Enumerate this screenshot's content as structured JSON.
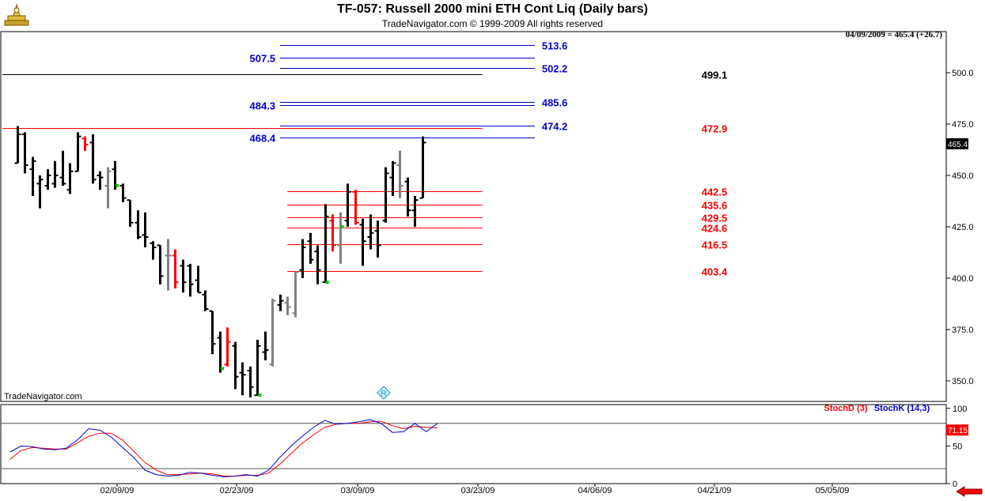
{
  "header": {
    "title": "TF-057:  Russell 2000 mini ETH Cont Liq  (Daily bars)",
    "subtitle": "TradeNavigator.com © 1999-2009 All rights reserved",
    "info": "04/09/2009 = 465.4 (+26.7)",
    "watermark": "TradeNavigator.com"
  },
  "indicator": {
    "stochd_label": "StochD (3)",
    "stochk_label": "StochK (14,3)",
    "last_value": "71.15"
  },
  "price_tag": "465.4",
  "colors": {
    "up": "#000000",
    "down": "#ff0000",
    "neutral": "#808080",
    "blue": "#0000cc",
    "red": "#ff0000",
    "green": "#00cc00"
  },
  "chart_data": {
    "type": "ohlc",
    "ylim": [
      340,
      520
    ],
    "y_ticks": [
      "350.0",
      "375.0",
      "400.0",
      "425.0",
      "450.0",
      "475.0",
      "500.0"
    ],
    "x_tick_labels": [
      "02/09/09",
      "02/23/09",
      "03/09/09",
      "03/23/09",
      "04/06/09",
      "04/21/09",
      "05/05/09"
    ],
    "bars": [
      {
        "o": 456,
        "h": 474,
        "l": 456,
        "c": 470,
        "t": "up"
      },
      {
        "o": 470,
        "h": 471,
        "l": 451,
        "c": 455,
        "t": "up"
      },
      {
        "o": 453,
        "h": 459,
        "l": 440,
        "c": 457,
        "t": "up"
      },
      {
        "o": 446,
        "h": 450,
        "l": 434,
        "c": 448,
        "t": "up"
      },
      {
        "o": 445,
        "h": 453,
        "l": 443,
        "c": 450,
        "t": "up"
      },
      {
        "o": 446,
        "h": 457,
        "l": 444,
        "c": 450,
        "t": "up"
      },
      {
        "o": 449,
        "h": 462,
        "l": 445,
        "c": 446,
        "t": "up"
      },
      {
        "o": 443,
        "h": 456,
        "l": 441,
        "c": 452,
        "t": "up"
      },
      {
        "o": 452,
        "h": 471,
        "l": 452,
        "c": 469,
        "t": "up"
      },
      {
        "o": 468,
        "h": 469,
        "l": 462,
        "c": 465,
        "t": "down"
      },
      {
        "o": 466,
        "h": 470,
        "l": 446,
        "c": 448,
        "t": "up"
      },
      {
        "o": 450,
        "h": 452,
        "l": 443,
        "c": 449,
        "t": "up"
      },
      {
        "o": 445,
        "h": 454,
        "l": 434,
        "c": 452,
        "t": "neutral"
      },
      {
        "o": 453,
        "h": 457,
        "l": 443,
        "c": 445,
        "t": "up"
      },
      {
        "o": 445,
        "h": 446,
        "l": 437,
        "c": 439,
        "t": "up"
      },
      {
        "o": 438,
        "h": 438,
        "l": 425,
        "c": 427,
        "t": "up"
      },
      {
        "o": 427,
        "h": 433,
        "l": 419,
        "c": 420,
        "t": "up"
      },
      {
        "o": 421,
        "h": 432,
        "l": 415,
        "c": 420,
        "t": "up"
      },
      {
        "o": 417,
        "h": 418,
        "l": 409,
        "c": 415,
        "t": "up"
      },
      {
        "o": 416,
        "h": 416,
        "l": 397,
        "c": 401,
        "t": "up"
      },
      {
        "o": 411,
        "h": 419,
        "l": 394,
        "c": 411,
        "t": "neutral"
      },
      {
        "o": 411,
        "h": 414,
        "l": 395,
        "c": 398,
        "t": "down"
      },
      {
        "o": 406,
        "h": 409,
        "l": 393,
        "c": 398,
        "t": "up"
      },
      {
        "o": 406,
        "h": 407,
        "l": 391,
        "c": 397,
        "t": "up"
      },
      {
        "o": 399,
        "h": 406,
        "l": 393,
        "c": 393,
        "t": "up"
      },
      {
        "o": 392,
        "h": 394,
        "l": 384,
        "c": 385,
        "t": "up"
      },
      {
        "o": 384,
        "h": 384,
        "l": 363,
        "c": 368,
        "t": "up"
      },
      {
        "o": 371,
        "h": 374,
        "l": 354,
        "c": 356,
        "t": "up"
      },
      {
        "o": 358,
        "h": 376,
        "l": 357,
        "c": 369,
        "t": "down"
      },
      {
        "o": 367,
        "h": 369,
        "l": 346,
        "c": 352,
        "t": "up"
      },
      {
        "o": 354,
        "h": 359,
        "l": 343,
        "c": 353,
        "t": "up"
      },
      {
        "o": 355,
        "h": 357,
        "l": 342,
        "c": 347,
        "t": "up"
      },
      {
        "o": 343,
        "h": 370,
        "l": 343,
        "c": 367,
        "t": "up"
      },
      {
        "o": 364,
        "h": 374,
        "l": 360,
        "c": 365,
        "t": "up"
      },
      {
        "o": 358,
        "h": 390,
        "l": 357,
        "c": 389,
        "t": "neutral"
      },
      {
        "o": 387,
        "h": 392,
        "l": 384,
        "c": 389,
        "t": "up"
      },
      {
        "o": 388,
        "h": 391,
        "l": 382,
        "c": 386,
        "t": "neutral"
      },
      {
        "o": 383,
        "h": 403,
        "l": 381,
        "c": 403,
        "t": "neutral"
      },
      {
        "o": 404,
        "h": 419,
        "l": 400,
        "c": 415,
        "t": "up"
      },
      {
        "o": 418,
        "h": 422,
        "l": 407,
        "c": 409,
        "t": "up"
      },
      {
        "o": 413,
        "h": 416,
        "l": 397,
        "c": 404,
        "t": "up"
      },
      {
        "o": 398,
        "h": 436,
        "l": 398,
        "c": 430,
        "t": "up"
      },
      {
        "o": 428,
        "h": 431,
        "l": 413,
        "c": 416,
        "t": "down"
      },
      {
        "o": 416,
        "h": 432,
        "l": 407,
        "c": 425,
        "t": "neutral"
      },
      {
        "o": 428,
        "h": 446,
        "l": 425,
        "c": 442,
        "t": "up"
      },
      {
        "o": 442,
        "h": 443,
        "l": 426,
        "c": 427,
        "t": "down"
      },
      {
        "o": 426,
        "h": 429,
        "l": 406,
        "c": 418,
        "t": "up"
      },
      {
        "o": 420,
        "h": 431,
        "l": 414,
        "c": 422,
        "t": "up"
      },
      {
        "o": 423,
        "h": 428,
        "l": 410,
        "c": 416,
        "t": "up"
      },
      {
        "o": 428,
        "h": 454,
        "l": 427,
        "c": 451,
        "t": "up"
      },
      {
        "o": 449,
        "h": 457,
        "l": 440,
        "c": 456,
        "t": "up"
      },
      {
        "o": 455,
        "h": 462,
        "l": 439,
        "c": 445,
        "t": "neutral"
      },
      {
        "o": 447,
        "h": 449,
        "l": 430,
        "c": 433,
        "t": "up"
      },
      {
        "o": 433,
        "h": 440,
        "l": 425,
        "c": 438,
        "t": "up"
      },
      {
        "o": 439,
        "h": 469,
        "l": 439,
        "c": 466,
        "t": "up"
      }
    ],
    "green_dots": [
      {
        "bar": 13,
        "y": 445
      },
      {
        "bar": 27,
        "y": 356
      },
      {
        "bar": 32,
        "y": 343
      },
      {
        "bar": 41,
        "y": 398
      },
      {
        "bar": 43,
        "y": 425
      }
    ],
    "levels": [
      {
        "value": "513.6",
        "y": 513.6,
        "color": "blue",
        "x1_bar": 35,
        "x2_bar": 69,
        "label_side": "right"
      },
      {
        "value": "507.5",
        "y": 507.5,
        "color": "blue",
        "x1_bar": 35,
        "x2_bar": 69,
        "label_side": "left"
      },
      {
        "value": "502.2",
        "y": 502.2,
        "color": "blue",
        "x1_bar": 35,
        "x2_bar": 69,
        "label_side": "right"
      },
      {
        "value": "499.1",
        "y": 499.1,
        "color": "black",
        "x1_bar": -2,
        "x2_bar": 62,
        "label_side": "center"
      },
      {
        "value": "485.6",
        "y": 485.6,
        "color": "blue",
        "x1_bar": 35,
        "x2_bar": 69,
        "label_side": "right"
      },
      {
        "value": "484.3",
        "y": 484.3,
        "color": "blue",
        "x1_bar": 35,
        "x2_bar": 69,
        "label_side": "left"
      },
      {
        "value": "474.2",
        "y": 474.2,
        "color": "blue",
        "x1_bar": 35,
        "x2_bar": 69,
        "label_side": "right"
      },
      {
        "value": "472.9",
        "y": 472.9,
        "color": "red",
        "x1_bar": -2,
        "x2_bar": 62,
        "label_side": "center"
      },
      {
        "value": "468.4",
        "y": 468.4,
        "color": "blue",
        "x1_bar": 35,
        "x2_bar": 69,
        "label_side": "left"
      },
      {
        "value": "442.5",
        "y": 442.5,
        "color": "red",
        "x1_bar": 36,
        "x2_bar": 62,
        "label_side": "center"
      },
      {
        "value": "435.6",
        "y": 435.6,
        "color": "red",
        "x1_bar": 36,
        "x2_bar": 62,
        "label_side": "center"
      },
      {
        "value": "429.5",
        "y": 429.5,
        "color": "red",
        "x1_bar": 36,
        "x2_bar": 62,
        "label_side": "center"
      },
      {
        "value": "424.6",
        "y": 424.6,
        "color": "red",
        "x1_bar": 36,
        "x2_bar": 62,
        "label_side": "center"
      },
      {
        "value": "416.5",
        "y": 416.5,
        "color": "red",
        "x1_bar": 36,
        "x2_bar": 62,
        "label_side": "center"
      },
      {
        "value": "403.4",
        "y": 403.4,
        "color": "red",
        "x1_bar": 36,
        "x2_bar": 62,
        "label_side": "center"
      }
    ],
    "stoch": {
      "ylim": [
        0,
        105
      ],
      "y_ticks": [
        "0",
        "50",
        "100"
      ],
      "ref_lines": [
        20,
        80
      ],
      "stochk": [
        42,
        50,
        49,
        46,
        45,
        47,
        58,
        73,
        71,
        62,
        48,
        35,
        18,
        12,
        10,
        11,
        15,
        14,
        11,
        9,
        10,
        12,
        10,
        18,
        35,
        50,
        63,
        75,
        84,
        79,
        80,
        82,
        85,
        80,
        68,
        69,
        80,
        69,
        80
      ],
      "stochd": [
        32,
        44,
        48,
        47,
        46,
        46,
        54,
        63,
        67,
        67,
        58,
        43,
        28,
        18,
        12,
        12,
        13,
        14,
        13,
        10,
        10,
        11,
        11,
        14,
        26,
        40,
        54,
        65,
        75,
        79,
        80,
        80,
        82,
        83,
        77,
        73,
        76,
        75,
        74
      ],
      "stoch_start_bar": -1,
      "stoch_step": 1.5
    }
  }
}
